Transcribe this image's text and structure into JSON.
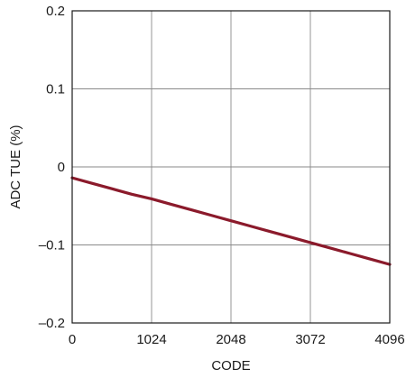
{
  "chart_data": {
    "type": "line",
    "title": "",
    "xlabel": "CODE",
    "ylabel": "ADC TUE (%)",
    "xlim": [
      0,
      4096
    ],
    "ylim": [
      -0.2,
      0.2
    ],
    "x_ticks": [
      0,
      1024,
      2048,
      3072,
      4096
    ],
    "x_tick_labels": [
      "0",
      "1024",
      "2048",
      "3072",
      "4096"
    ],
    "y_ticks": [
      0.2,
      0.1,
      0,
      -0.1,
      -0.2
    ],
    "y_tick_labels": [
      "0.2",
      "0.1",
      "0",
      "–0.1",
      "–0.2"
    ],
    "grid": true,
    "series": [
      {
        "color": "#8b1a2b",
        "x": [
          0,
          256,
          512,
          768,
          1024,
          1280,
          1536,
          1792,
          2048,
          2304,
          2560,
          2816,
          3072,
          3328,
          3584,
          3840,
          4096
        ],
        "y": [
          -0.014,
          -0.021,
          -0.028,
          -0.035,
          -0.041,
          -0.048,
          -0.055,
          -0.062,
          -0.069,
          -0.076,
          -0.083,
          -0.09,
          -0.097,
          -0.104,
          -0.111,
          -0.118,
          -0.125
        ]
      }
    ]
  }
}
